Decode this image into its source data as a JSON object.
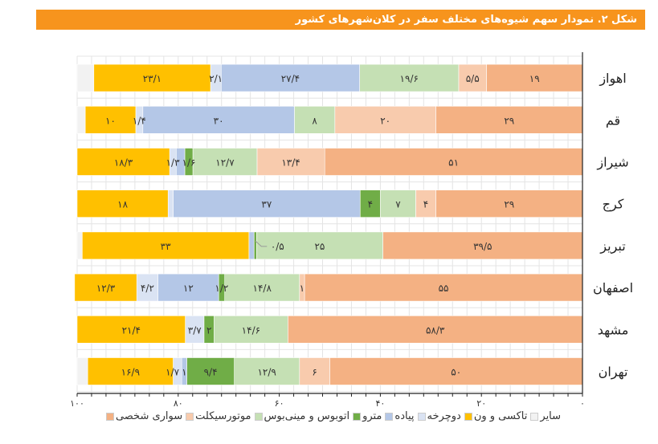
{
  "title": "شکل ۲. نمودار سهم شیوه‌های مختلف سفر در کلان‌شهرهای کشور",
  "chart_data": {
    "type": "bar",
    "orientation": "horizontal-stacked",
    "direction": "right-to-left",
    "xlim": [
      0,
      100
    ],
    "x_ticks": [
      0,
      20,
      40,
      60,
      80,
      100
    ],
    "x_tick_labels": [
      "۰",
      "۲۰",
      "۴۰",
      "۶۰",
      "۸۰",
      "۱۰۰"
    ],
    "grid": true,
    "legend_position": "bottom",
    "series_keys": [
      "car",
      "moto",
      "bus",
      "metro",
      "walk",
      "bike",
      "taxi",
      "other"
    ],
    "series": [
      {
        "key": "car",
        "name": "سواری شخصی",
        "color": "#F4B183"
      },
      {
        "key": "moto",
        "name": "موتورسیکلت",
        "color": "#F8CBAD"
      },
      {
        "key": "bus",
        "name": "اتوبوس و مینی‌بوس",
        "color": "#C5E0B4"
      },
      {
        "key": "metro",
        "name": "مترو",
        "color": "#70AD47"
      },
      {
        "key": "walk",
        "name": "پیاده",
        "color": "#B4C7E7"
      },
      {
        "key": "bike",
        "name": "دوچرخه",
        "color": "#DAE3F3"
      },
      {
        "key": "taxi",
        "name": "تاکسی و ون",
        "color": "#FFC000"
      },
      {
        "key": "other",
        "name": "سایر",
        "color": "#F2F2F2"
      }
    ],
    "legend_order": [
      "other",
      "taxi",
      "bike",
      "walk",
      "metro",
      "bus",
      "moto",
      "car"
    ],
    "categories": [
      {
        "city": "اهواز",
        "values": {
          "car": 19,
          "moto": 5.5,
          "bus": 19.6,
          "metro": 0,
          "walk": 27.4,
          "bike": 2.1,
          "taxi": 23.1,
          "other": 3.3
        },
        "labels": {
          "car": "۱۹",
          "moto": "۵/۵",
          "bus": "۱۹/۶",
          "walk": "۲۷/۴",
          "bike": "۲/۱",
          "taxi": "۲۳/۱"
        }
      },
      {
        "city": "قم",
        "values": {
          "car": 29,
          "moto": 20,
          "bus": 8,
          "metro": 0,
          "walk": 30,
          "bike": 1.4,
          "taxi": 10,
          "other": 1.6
        },
        "labels": {
          "car": "۲۹",
          "moto": "۲۰",
          "bus": "۸",
          "walk": "۳۰",
          "bike": "۱/۴",
          "taxi": "۱۰"
        }
      },
      {
        "city": "شیراز",
        "values": {
          "car": 51,
          "moto": 13.4,
          "bus": 12.7,
          "metro": 1.6,
          "walk": 1.7,
          "bike": 1.3,
          "taxi": 18.3,
          "other": 0
        },
        "labels": {
          "car": "۵۱",
          "moto": "۱۳/۴",
          "bus": "۱۲/۷",
          "metro": "۱/۶",
          "bike": "۱/۳",
          "taxi": "۱۸/۳"
        }
      },
      {
        "city": "کرج",
        "values": {
          "car": 29,
          "moto": 4,
          "bus": 7,
          "metro": 4,
          "walk": 37,
          "bike": 1,
          "taxi": 18,
          "other": 0
        },
        "labels": {
          "car": "۲۹",
          "moto": "۴",
          "bus": "۷",
          "metro": "۴",
          "walk": "۳۷",
          "taxi": "۱۸"
        }
      },
      {
        "city": "تبریز",
        "values": {
          "car": 39.5,
          "moto": 0,
          "bus": 25,
          "metro": 0.5,
          "walk": 1,
          "bike": 0,
          "taxi": 33,
          "other": 1
        },
        "labels": {
          "car": "۳۹/۵",
          "bus": "۲۵",
          "metro": "۰/۵",
          "taxi": "۳۳"
        }
      },
      {
        "city": "اصفهان",
        "values": {
          "car": 55,
          "moto": 1,
          "bus": 14.8,
          "metro": 1.2,
          "walk": 12,
          "bike": 4.2,
          "taxi": 12.3,
          "other": 0
        },
        "labels": {
          "car": "۵۵",
          "moto": "۱",
          "bus": "۱۴/۸",
          "metro": "۱/۲",
          "walk": "۱۲",
          "bike": "۴/۲",
          "taxi": "۱۲/۳"
        }
      },
      {
        "city": "مشهد",
        "values": {
          "car": 58.3,
          "moto": 0,
          "bus": 14.6,
          "metro": 2,
          "walk": 0,
          "bike": 3.7,
          "taxi": 21.4,
          "other": 0
        },
        "labels": {
          "car": "۵۸/۳",
          "bus": "۱۴/۶",
          "metro": "۲",
          "bike": "۳/۷",
          "taxi": "۲۱/۴"
        }
      },
      {
        "city": "تهران",
        "values": {
          "car": 50,
          "moto": 6,
          "bus": 12.9,
          "metro": 9.4,
          "walk": 1,
          "bike": 1.7,
          "taxi": 16.9,
          "other": 2.1
        },
        "labels": {
          "car": "۵۰",
          "moto": "۶",
          "bus": "۱۲/۹",
          "metro": "۹/۴",
          "walk": "۱",
          "bike": "۱/۷",
          "taxi": "۱۶/۹"
        }
      }
    ]
  }
}
